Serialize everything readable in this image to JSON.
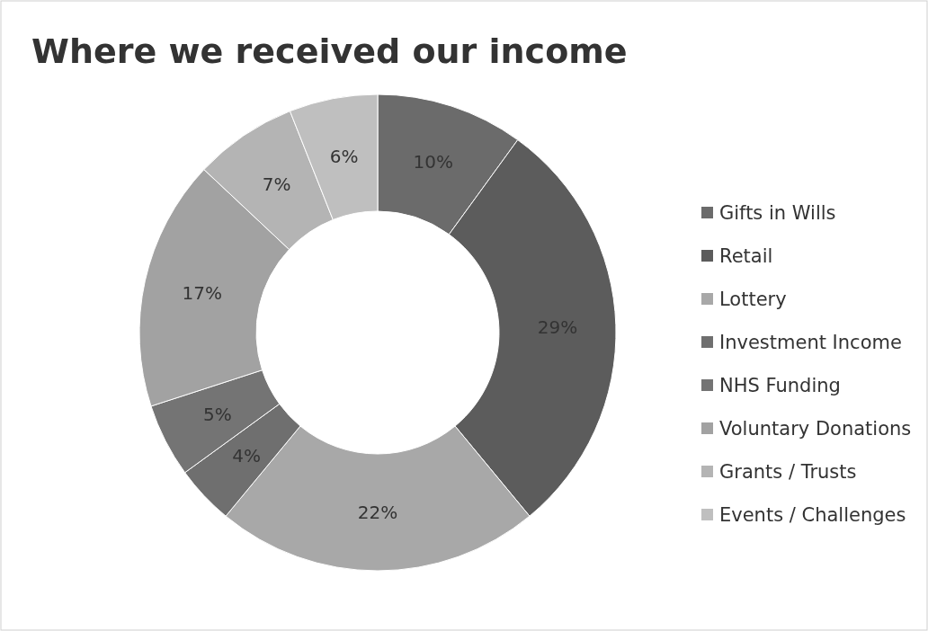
{
  "chart_data": {
    "type": "donut",
    "title": "Where we received our income",
    "categories": [
      "Gifts in Wills",
      "Retail",
      "Lottery",
      "Investment Income",
      "NHS Funding",
      "Voluntary Donations",
      "Grants / Trusts",
      "Events / Challenges"
    ],
    "values": [
      10,
      29,
      22,
      4,
      5,
      17,
      7,
      6
    ],
    "colors": [
      "#6b6b6b",
      "#5c5c5c",
      "#a8a8a8",
      "#6f6f6f",
      "#747474",
      "#a2a2a2",
      "#b4b4b4",
      "#bfbfbf"
    ],
    "value_labels": [
      "10%",
      "29%",
      "22%",
      "4%",
      "5%",
      "17%",
      "7%",
      "6%"
    ],
    "legend": "right"
  }
}
